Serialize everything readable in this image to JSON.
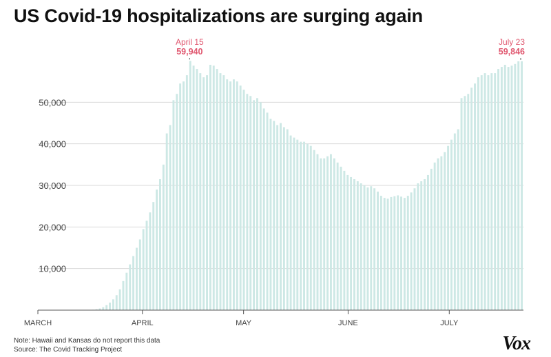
{
  "title": "US Covid-19 hospitalizations are surging again",
  "notes": {
    "note": "Note: Hawaii and Kansas do not report this data",
    "source": "Source: The Covid Tracking Project"
  },
  "logo": "Vox",
  "colors": {
    "bar": "#cde8e5",
    "highlight": "#e0576f",
    "grid": "#d9d9d9",
    "axis": "#555555",
    "text": "#444444"
  },
  "chart_data": {
    "type": "bar",
    "title": "US Covid-19 hospitalizations are surging again",
    "xlabel": "",
    "ylabel": "",
    "ylim": [
      0,
      60000
    ],
    "grid": true,
    "x_start": "2020-03-01",
    "x_end": "2020-07-23",
    "x_ticks": [
      {
        "label": "MARCH",
        "date": "2020-03-01"
      },
      {
        "label": "APRIL",
        "date": "2020-04-01"
      },
      {
        "label": "MAY",
        "date": "2020-05-01"
      },
      {
        "label": "JUNE",
        "date": "2020-06-01"
      },
      {
        "label": "JULY",
        "date": "2020-07-01"
      }
    ],
    "y_ticks": [
      {
        "label": "10,000",
        "value": 10000
      },
      {
        "label": "20,000",
        "value": 20000
      },
      {
        "label": "30,000",
        "value": 30000
      },
      {
        "label": "40,000",
        "value": 40000
      },
      {
        "label": "50,000",
        "value": 50000
      }
    ],
    "annotations": [
      {
        "date": "2020-04-15",
        "date_label": "April 15",
        "value": 59940,
        "value_label": "59,940"
      },
      {
        "date": "2020-07-23",
        "date_label": "July 23",
        "value": 59846,
        "value_label": "59,846"
      }
    ],
    "series": [
      {
        "values": [
          [
            0,
            0,
            0,
            0,
            0,
            0,
            0,
            0,
            0,
            0,
            0,
            0,
            0,
            0,
            0,
            0,
            100,
            200,
            400,
            700,
            1200,
            1800,
            2600,
            3600,
            5000,
            7000,
            9000,
            11000,
            13000,
            15000,
            17000
          ],
          [
            19500,
            21500,
            23500,
            26000,
            29000,
            31500,
            35000,
            42500,
            44500,
            50500,
            52000,
            54500,
            55000,
            56500,
            59940,
            58800,
            58000,
            57000,
            56000,
            56500,
            59000,
            58800,
            58000,
            57000,
            56500,
            55500,
            55000,
            55500,
            55000,
            54000
          ],
          [
            53000,
            52000,
            51500,
            50500,
            51000,
            50000,
            48500,
            47500,
            46000,
            45500,
            44500,
            45000,
            44000,
            43500,
            42000,
            41500,
            41000,
            40500,
            40500,
            40000,
            39500,
            38500,
            37500,
            36500,
            36500,
            37000,
            37500,
            36500,
            35500,
            34500,
            33500
          ],
          [
            32500,
            32000,
            31500,
            31000,
            30500,
            30000,
            29500,
            29800,
            29300,
            28500,
            27500,
            27000,
            26800,
            27200,
            27400,
            27600,
            27300,
            27000,
            27500,
            28300,
            29300,
            30500,
            31000,
            31500,
            32500,
            34000,
            35500,
            36500,
            37000,
            38000
          ],
          [
            39500,
            41000,
            42500,
            43500,
            51000,
            51500,
            52000,
            53500,
            54500,
            56000,
            56500,
            57000,
            56500,
            57000,
            57000,
            58000,
            58500,
            59000,
            58500,
            58800,
            59200,
            59846,
            59846
          ]
        ]
      }
    ]
  }
}
